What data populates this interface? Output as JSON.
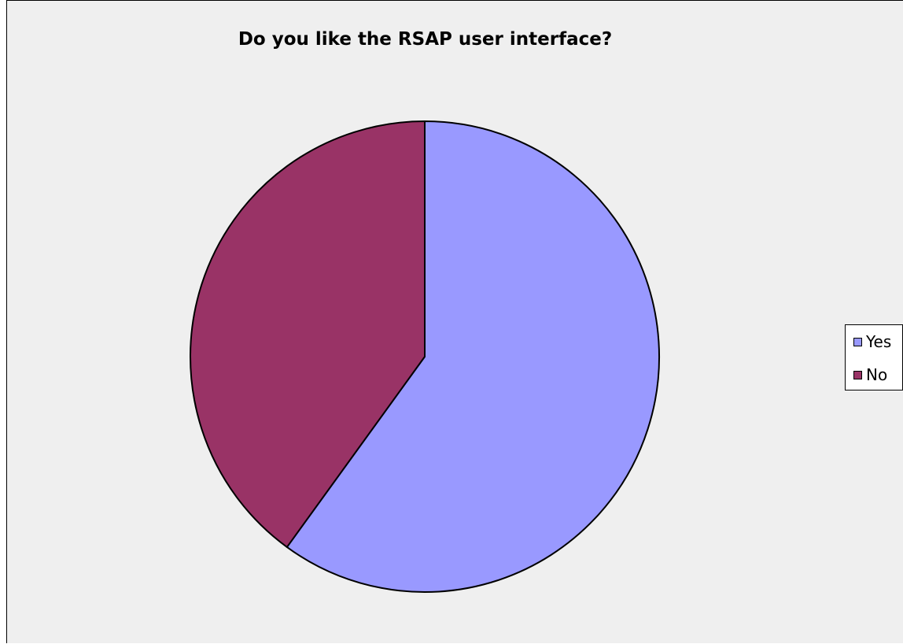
{
  "chart_data": {
    "type": "pie",
    "title": "Do you like the RSAP user interface?",
    "slices": [
      {
        "label": "Yes",
        "value": 60,
        "color": "#9999ff"
      },
      {
        "label": "No",
        "value": 40,
        "color": "#993366"
      }
    ],
    "start_angle_deg": 0,
    "direction": "clockwise",
    "legend_position": "right"
  },
  "legend": {
    "items": [
      {
        "label": "Yes",
        "color": "#9999ff"
      },
      {
        "label": "No",
        "color": "#993366"
      }
    ]
  },
  "colors": {
    "background": "#efefef",
    "outline": "#000000"
  }
}
